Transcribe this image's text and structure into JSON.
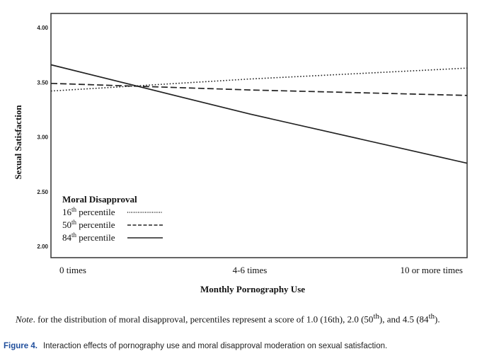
{
  "chart_data": {
    "type": "line",
    "x": [
      "0 times",
      "4-6 times",
      "10 or more times"
    ],
    "xlabel": "Monthly Pornography Use",
    "ylabel": "Sexual Satisfaction",
    "ylim": [
      2.0,
      4.0
    ],
    "yticks": [
      "2.00",
      "2.50",
      "3.00",
      "3.50",
      "4.00"
    ],
    "grid": false,
    "legend_title": "Moral Disapproval",
    "legend_position": "bottom-left",
    "series": [
      {
        "name_base": "16",
        "name_sup": "th",
        "name_rest": " percentile",
        "style": "dotted",
        "values": [
          3.42,
          3.53,
          3.63
        ]
      },
      {
        "name_base": "50",
        "name_sup": "th",
        "name_rest": " percentile",
        "style": "dashed",
        "values": [
          3.49,
          3.43,
          3.38
        ]
      },
      {
        "name_base": "84",
        "name_sup": "th",
        "name_rest": " percentile",
        "style": "solid",
        "values": [
          3.66,
          3.21,
          2.76
        ]
      }
    ]
  },
  "note": {
    "label": "Note",
    "text_1": ". for the distribution of moral disapproval, percentiles represent a score of 1.0 (16th), 2.0 (50",
    "sup_1": "th",
    "text_2": "), and 4.5 (84",
    "sup_2": "th",
    "text_3": ")."
  },
  "caption": {
    "label": "Figure 4.",
    "text": "Interaction effects of pornography use and moral disapproval moderation on sexual satisfaction."
  }
}
